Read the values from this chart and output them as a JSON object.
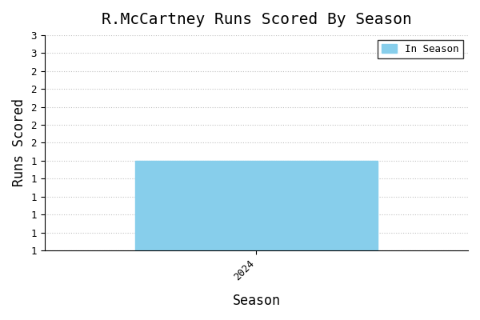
{
  "title": "R.McCartney Runs Scored By Season",
  "xlabel": "Season",
  "ylabel": "Runs Scored",
  "seasons": [
    2024
  ],
  "values": [
    2
  ],
  "bar_color": "#87CEEB",
  "bar_edgecolor": "#87CEEB",
  "ylim_min": 1.0,
  "ylim_max": 3.4,
  "xlim_min": 2023.3,
  "xlim_max": 2024.7,
  "bar_width": 0.8,
  "legend_label": "In Season",
  "background_color": "#ffffff",
  "grid_color": "#bbbbbb",
  "title_fontsize": 14,
  "label_fontsize": 12
}
